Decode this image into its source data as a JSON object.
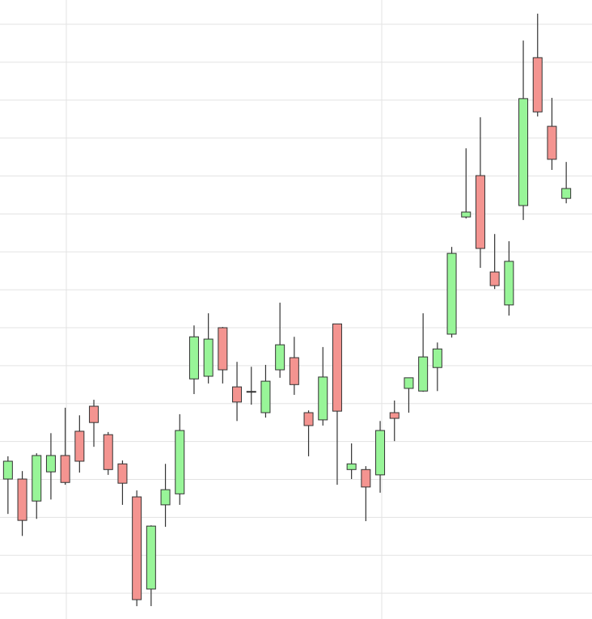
{
  "chart_data": {
    "type": "candlestick",
    "categories": [
      null,
      null,
      null,
      null,
      null,
      null,
      null,
      null,
      null,
      null,
      null,
      null,
      null,
      null,
      null,
      null,
      null,
      null,
      null,
      null,
      null,
      null,
      null,
      null,
      null,
      null,
      null,
      null,
      null,
      null,
      null,
      null,
      null,
      null,
      null,
      null,
      null,
      null,
      null,
      null
    ],
    "open": [
      4.01,
      4.01,
      3.43,
      4.2,
      4.63,
      5.27,
      5.93,
      5.18,
      4.41,
      3.54,
      1.11,
      3.33,
      3.62,
      6.65,
      6.72,
      8.0,
      6.44,
      6.32,
      5.76,
      6.89,
      7.21,
      5.76,
      5.57,
      8.1,
      4.26,
      4.26,
      4.12,
      5.76,
      6.4,
      6.33,
      6.95,
      7.83,
      10.92,
      12.01,
      9.47,
      8.6,
      11.22,
      15.12,
      13.31,
      11.41
    ],
    "high": [
      4.61,
      4.22,
      4.69,
      5.22,
      5.89,
      5.69,
      6.1,
      5.25,
      4.5,
      3.71,
      2.79,
      4.41,
      5.72,
      8.06,
      8.38,
      8.02,
      7.1,
      6.97,
      7.02,
      8.66,
      7.76,
      5.82,
      7.49,
      8.1,
      4.95,
      4.35,
      5.54,
      6.08,
      6.68,
      8.38,
      7.61,
      10.13,
      12.73,
      13.55,
      10.47,
      10.28,
      15.57,
      16.28,
      14.06,
      12.37
    ],
    "low": [
      3.09,
      2.51,
      2.96,
      3.47,
      3.86,
      4.18,
      4.86,
      4.12,
      3.33,
      0.66,
      0.66,
      2.75,
      3.33,
      6.25,
      6.53,
      6.53,
      5.54,
      5.97,
      5.63,
      6.68,
      6.23,
      4.61,
      5.42,
      3.86,
      4.01,
      2.9,
      3.65,
      5.01,
      5.76,
      6.31,
      6.33,
      7.74,
      10.88,
      9.58,
      9.02,
      8.32,
      10.84,
      13.57,
      12.16,
      11.28
    ],
    "close": [
      4.48,
      2.92,
      4.63,
      4.63,
      3.92,
      4.48,
      5.5,
      4.26,
      3.9,
      0.83,
      2.77,
      3.73,
      5.29,
      7.76,
      7.7,
      6.89,
      6.04,
      6.32,
      6.59,
      7.55,
      6.5,
      5.42,
      6.7,
      5.8,
      4.41,
      3.8,
      5.29,
      5.61,
      6.68,
      7.23,
      7.44,
      9.96,
      11.05,
      10.09,
      9.11,
      9.75,
      14.04,
      13.69,
      12.44,
      11.67
    ],
    "up_color": "#98f598",
    "down_color": "#f49490",
    "ylim": [
      0.32,
      16.64
    ],
    "yticks": [
      1,
      2,
      3,
      4,
      5,
      6,
      7,
      8,
      9,
      10,
      11,
      12,
      13,
      14,
      15,
      16
    ],
    "grid": true
  }
}
